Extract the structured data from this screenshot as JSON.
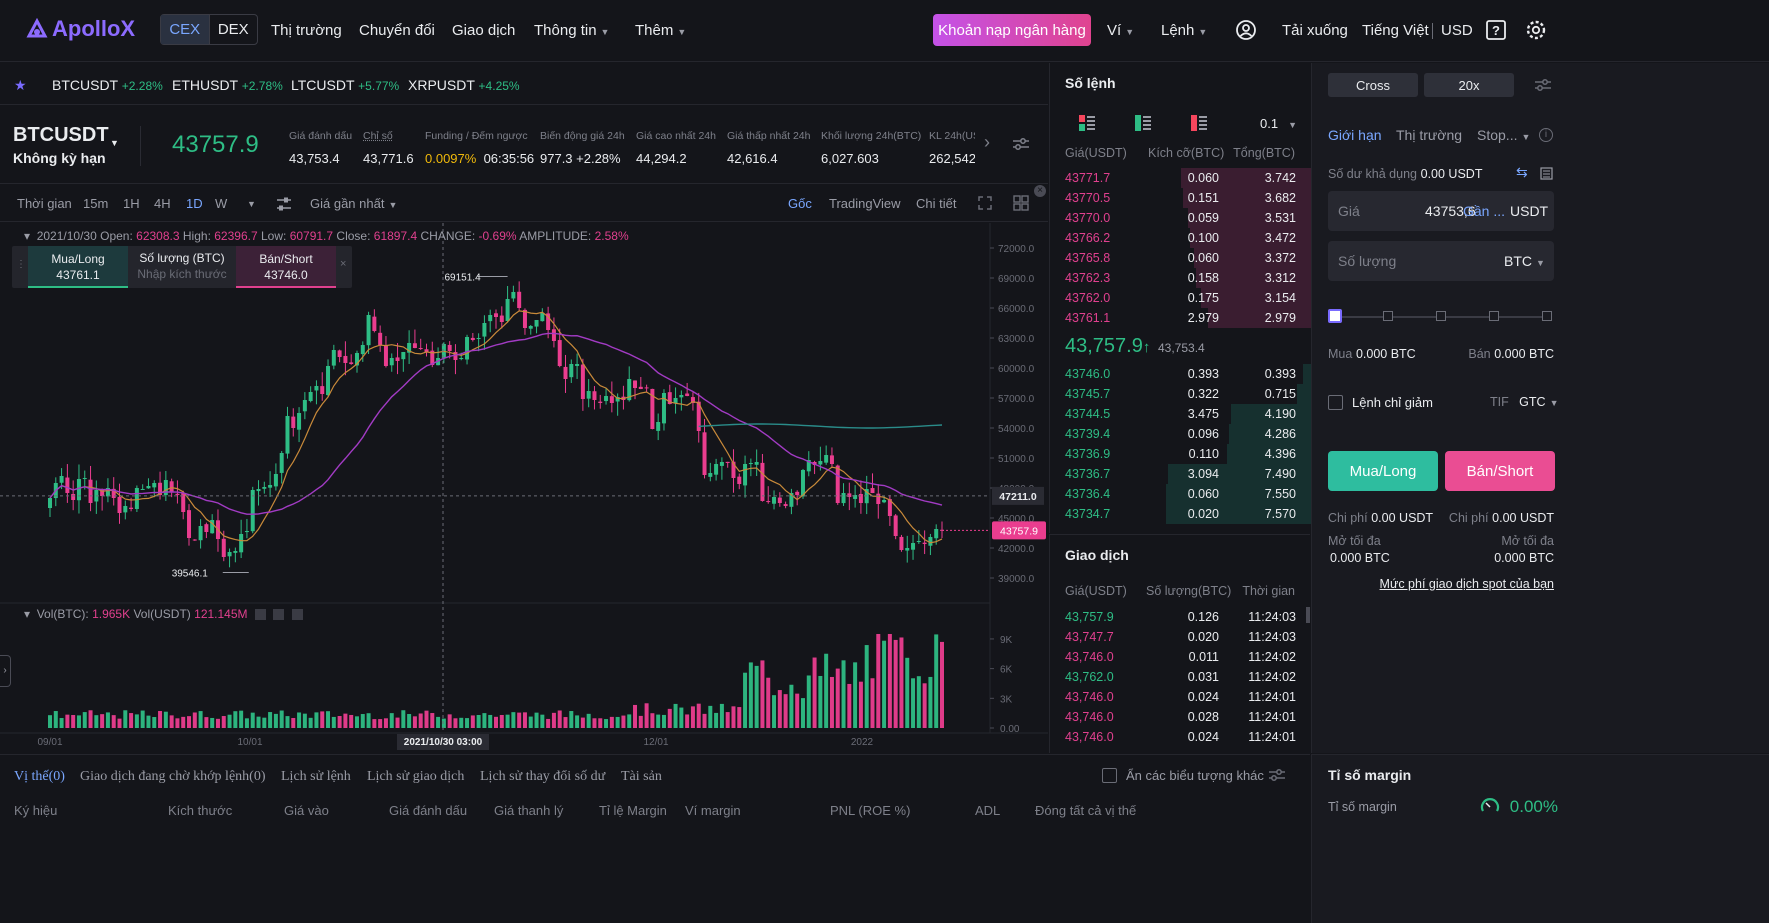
{
  "nav": {
    "logo": "ApolloX",
    "cex": "CEX",
    "dex": "DEX",
    "items": [
      "Thị trường",
      "Chuyển đổi",
      "Giao dịch",
      "Thông tin",
      "Thêm"
    ],
    "deposit": "Khoản nạp ngân hàng",
    "wallet": "Ví",
    "orders": "Lệnh",
    "download": "Tải xuống",
    "language": "Tiếng Việt",
    "currency": "USD"
  },
  "tickers": [
    {
      "sym": "BTCUSDT",
      "chg": "+2.28%"
    },
    {
      "sym": "ETHUSDT",
      "chg": "+2.78%"
    },
    {
      "sym": "LTCUSDT",
      "chg": "+5.77%"
    },
    {
      "sym": "XRPUSDT",
      "chg": "+4.25%"
    }
  ],
  "symbol": {
    "name": "BTCUSDT",
    "sub": "Không kỳ hạn",
    "last": "43757.9",
    "stats": [
      {
        "l": "Giá đánh dấu",
        "v": "43,753.4"
      },
      {
        "l": "Chỉ số",
        "v": "43,771.6"
      },
      {
        "l": "Funding / Đếm ngược",
        "v": "0.0097%",
        "v2": "06:35:56"
      },
      {
        "l": "Biến động giá 24h",
        "v": "977.3 +2.28%"
      },
      {
        "l": "Giá cao nhất 24h",
        "v": "44,294.2"
      },
      {
        "l": "Giá thấp nhất 24h",
        "v": "42,616.4"
      },
      {
        "l": "Khối lượng 24h(BTC)",
        "v": "6,027.603"
      },
      {
        "l": "KL 24h(US",
        "v": "262,542,"
      }
    ]
  },
  "chart_toolbar": {
    "time": "Thời gian",
    "intervals": [
      "15m",
      "1H",
      "4H",
      "1D",
      "W"
    ],
    "active": "1D",
    "price_type": "Giá gần nhất",
    "views": [
      "Gốc",
      "TradingView",
      "Chi tiết"
    ]
  },
  "ohlc": {
    "date": "2021/10/30",
    "open": "62308.3",
    "high": "62396.7",
    "low": "60791.7",
    "close": "61897.4",
    "change": "-0.69%",
    "amplitude": "2.58%",
    "labels": {
      "open": "Open:",
      "high": "High:",
      "low": "Low:",
      "close": "Close:",
      "change": "CHANGE:",
      "amplitude": "AMPLITUDE:"
    }
  },
  "quick": {
    "buy_label": "Mua/Long",
    "buy_price": "43761.1",
    "qty_label": "Số lượng (BTC)",
    "qty_placeholder": "Nhập kích thước",
    "sell_label": "Bán/Short",
    "sell_price": "43746.0"
  },
  "chart_labels": {
    "max": "69151.4",
    "min": "39546.1",
    "cross": "47211.0",
    "last": "43757.9",
    "crossdate": "2021/10/30 03:00",
    "vol_label": "Vol(BTC):",
    "vol_btc": "1.965K",
    "vol_usdt_label": "Vol(USDT)",
    "vol_usdt": "121.145M",
    "y_ticks": [
      "72000.0",
      "69000.0",
      "66000.0",
      "63000.0",
      "60000.0",
      "57000.0",
      "54000.0",
      "51000.0",
      "48000.0",
      "45000.0",
      "42000.0",
      "39000.0"
    ],
    "vol_ticks": [
      "9K",
      "6K",
      "3K",
      "0.00"
    ],
    "x_ticks": [
      "09/01",
      "10/01",
      "12/01",
      "2022"
    ]
  },
  "book": {
    "title": "Số lệnh",
    "depth": "0.1",
    "cols": [
      "Giá(USDT)",
      "Kích cỡ(BTC)",
      "Tổng(BTC)"
    ],
    "asks": [
      [
        "43771.7",
        "0.060",
        "3.742"
      ],
      [
        "43770.5",
        "0.151",
        "3.682"
      ],
      [
        "43770.0",
        "0.059",
        "3.531"
      ],
      [
        "43766.2",
        "0.100",
        "3.472"
      ],
      [
        "43765.8",
        "0.060",
        "3.372"
      ],
      [
        "43762.3",
        "0.158",
        "3.312"
      ],
      [
        "43762.0",
        "0.175",
        "3.154"
      ],
      [
        "43761.1",
        "2.979",
        "2.979"
      ]
    ],
    "mid": "43,757.9",
    "mid_arrow": "↑",
    "mark": "43,753.4",
    "bids": [
      [
        "43746.0",
        "0.393",
        "0.393"
      ],
      [
        "43745.7",
        "0.322",
        "0.715"
      ],
      [
        "43744.5",
        "3.475",
        "4.190"
      ],
      [
        "43739.4",
        "0.096",
        "4.286"
      ],
      [
        "43736.9",
        "0.110",
        "4.396"
      ],
      [
        "43736.7",
        "3.094",
        "7.490"
      ],
      [
        "43736.4",
        "0.060",
        "7.550"
      ],
      [
        "43734.7",
        "0.020",
        "7.570"
      ]
    ]
  },
  "trades": {
    "title": "Giao dịch",
    "cols": [
      "Giá(USDT)",
      "Số lượng(BTC)",
      "Thời gian"
    ],
    "rows": [
      [
        "43,757.9",
        "0.126",
        "11:24:03",
        "up"
      ],
      [
        "43,747.7",
        "0.020",
        "11:24:03",
        "dn"
      ],
      [
        "43,746.0",
        "0.011",
        "11:24:02",
        "dn"
      ],
      [
        "43,762.0",
        "0.031",
        "11:24:02",
        "up"
      ],
      [
        "43,746.0",
        "0.024",
        "11:24:01",
        "dn"
      ],
      [
        "43,746.0",
        "0.028",
        "11:24:01",
        "dn"
      ],
      [
        "43,746.0",
        "0.024",
        "11:24:01",
        "dn"
      ]
    ]
  },
  "panel": {
    "cross": "Cross",
    "lev": "20x",
    "tabs": [
      "Giới hạn",
      "Thị trường",
      "Stop..."
    ],
    "avail_label": "Số dư khả dụng",
    "avail": "0.00 USDT",
    "price_label": "Giá",
    "price": "43753,6",
    "near": "Gần ...",
    "usdt": "USDT",
    "qty_label": "Số lượng",
    "btc": "BTC",
    "buy_max_l": "Mua",
    "buy_max": "0.000 BTC",
    "sell_max_l": "Bán",
    "sell_max": "0.000 BTC",
    "reduce": "Lệnh chỉ giảm",
    "tif": "TIF",
    "gtc": "GTC",
    "buy": "Mua/Long",
    "sell": "Bán/Short",
    "fee_l": "Chi phí",
    "fee_buy": "0.00 USDT",
    "fee_sell": "0.00 USDT",
    "max_l": "Mở tối đa",
    "max_buy": "0.000 BTC",
    "max_sell": "0.000 BTC",
    "spot_fee": "Mức phí giao dịch spot của bạn"
  },
  "bottom": {
    "tabs": [
      "Vị thế(0)",
      "Giao dịch đang chờ khớp lệnh(0)",
      "Lịch sử lệnh",
      "Lịch sử giao dịch",
      "Lịch sử thay đổi số dư",
      "Tài sản"
    ],
    "hide": "Ẩn các biểu tượng khác",
    "cols": [
      "Ký hiệu",
      "Kích thước",
      "Giá vào",
      "Giá đánh dấu",
      "Giá thanh lý",
      "Tỉ lệ Margin",
      "Ví margin",
      "PNL (ROE %)",
      "ADL",
      "Đóng tất cả vị thế"
    ]
  },
  "margin": {
    "title": "Tỉ số margin",
    "label": "Tỉ số margin",
    "value": "0.00%"
  },
  "chart_data": {
    "type": "candlestick",
    "x_range": [
      "2021-08-20",
      "2022-01-20"
    ],
    "ylim": [
      39000,
      72000
    ],
    "y_ticks": [
      72000,
      69000,
      66000,
      63000,
      60000,
      57000,
      54000,
      51000,
      48000,
      45000,
      42000,
      39000
    ],
    "close": [
      47000,
      48500,
      49200,
      47500,
      46800,
      48900,
      49000,
      46500,
      47800,
      47200,
      48000,
      47000,
      45500,
      46200,
      45900,
      48000,
      47900,
      48200,
      48500,
      47300,
      48800,
      47600,
      47300,
      45600,
      43000,
      42800,
      44200,
      43600,
      44800,
      42900,
      41100,
      41600,
      41700,
      43400,
      43700,
      47800,
      47900,
      48100,
      48300,
      49400,
      51500,
      55200,
      54000,
      55500,
      56800,
      57600,
      58200,
      57400,
      60200,
      61800,
      61100,
      60500,
      60400,
      61500,
      62300,
      65300,
      63700,
      62300,
      60200,
      61000,
      60700,
      61600,
      62500,
      62000,
      61900,
      61600,
      60300,
      61000,
      62400,
      61700,
      60800,
      61000,
      63100,
      62800,
      63000,
      64500,
      65300,
      65100,
      64600,
      66900,
      67600,
      66000,
      64000,
      64200,
      64800,
      65500,
      63800,
      62700,
      60200,
      58900,
      60400,
      60400,
      56900,
      57700,
      56800,
      56500,
      57200,
      56500,
      57100,
      56800,
      58900,
      58000,
      57900,
      58000,
      53900,
      54600,
      57500,
      56400,
      57000,
      57300,
      57200,
      56500,
      53700,
      49300,
      49500,
      50400,
      50600,
      50500,
      49000,
      48400,
      50400,
      50500,
      50600,
      46700,
      46600,
      47100,
      46500,
      46200,
      47500,
      47300,
      49800,
      50800,
      50300,
      50700,
      51300,
      50400,
      46500,
      47500,
      47100,
      47300,
      46500,
      47900,
      47500,
      46400,
      46800,
      45200,
      43200,
      41800,
      42000,
      42500,
      42700,
      42400,
      43100,
      43900,
      43757.9
    ],
    "volume_ticks": [
      "9K",
      "6K",
      "3K",
      "0.00"
    ]
  }
}
